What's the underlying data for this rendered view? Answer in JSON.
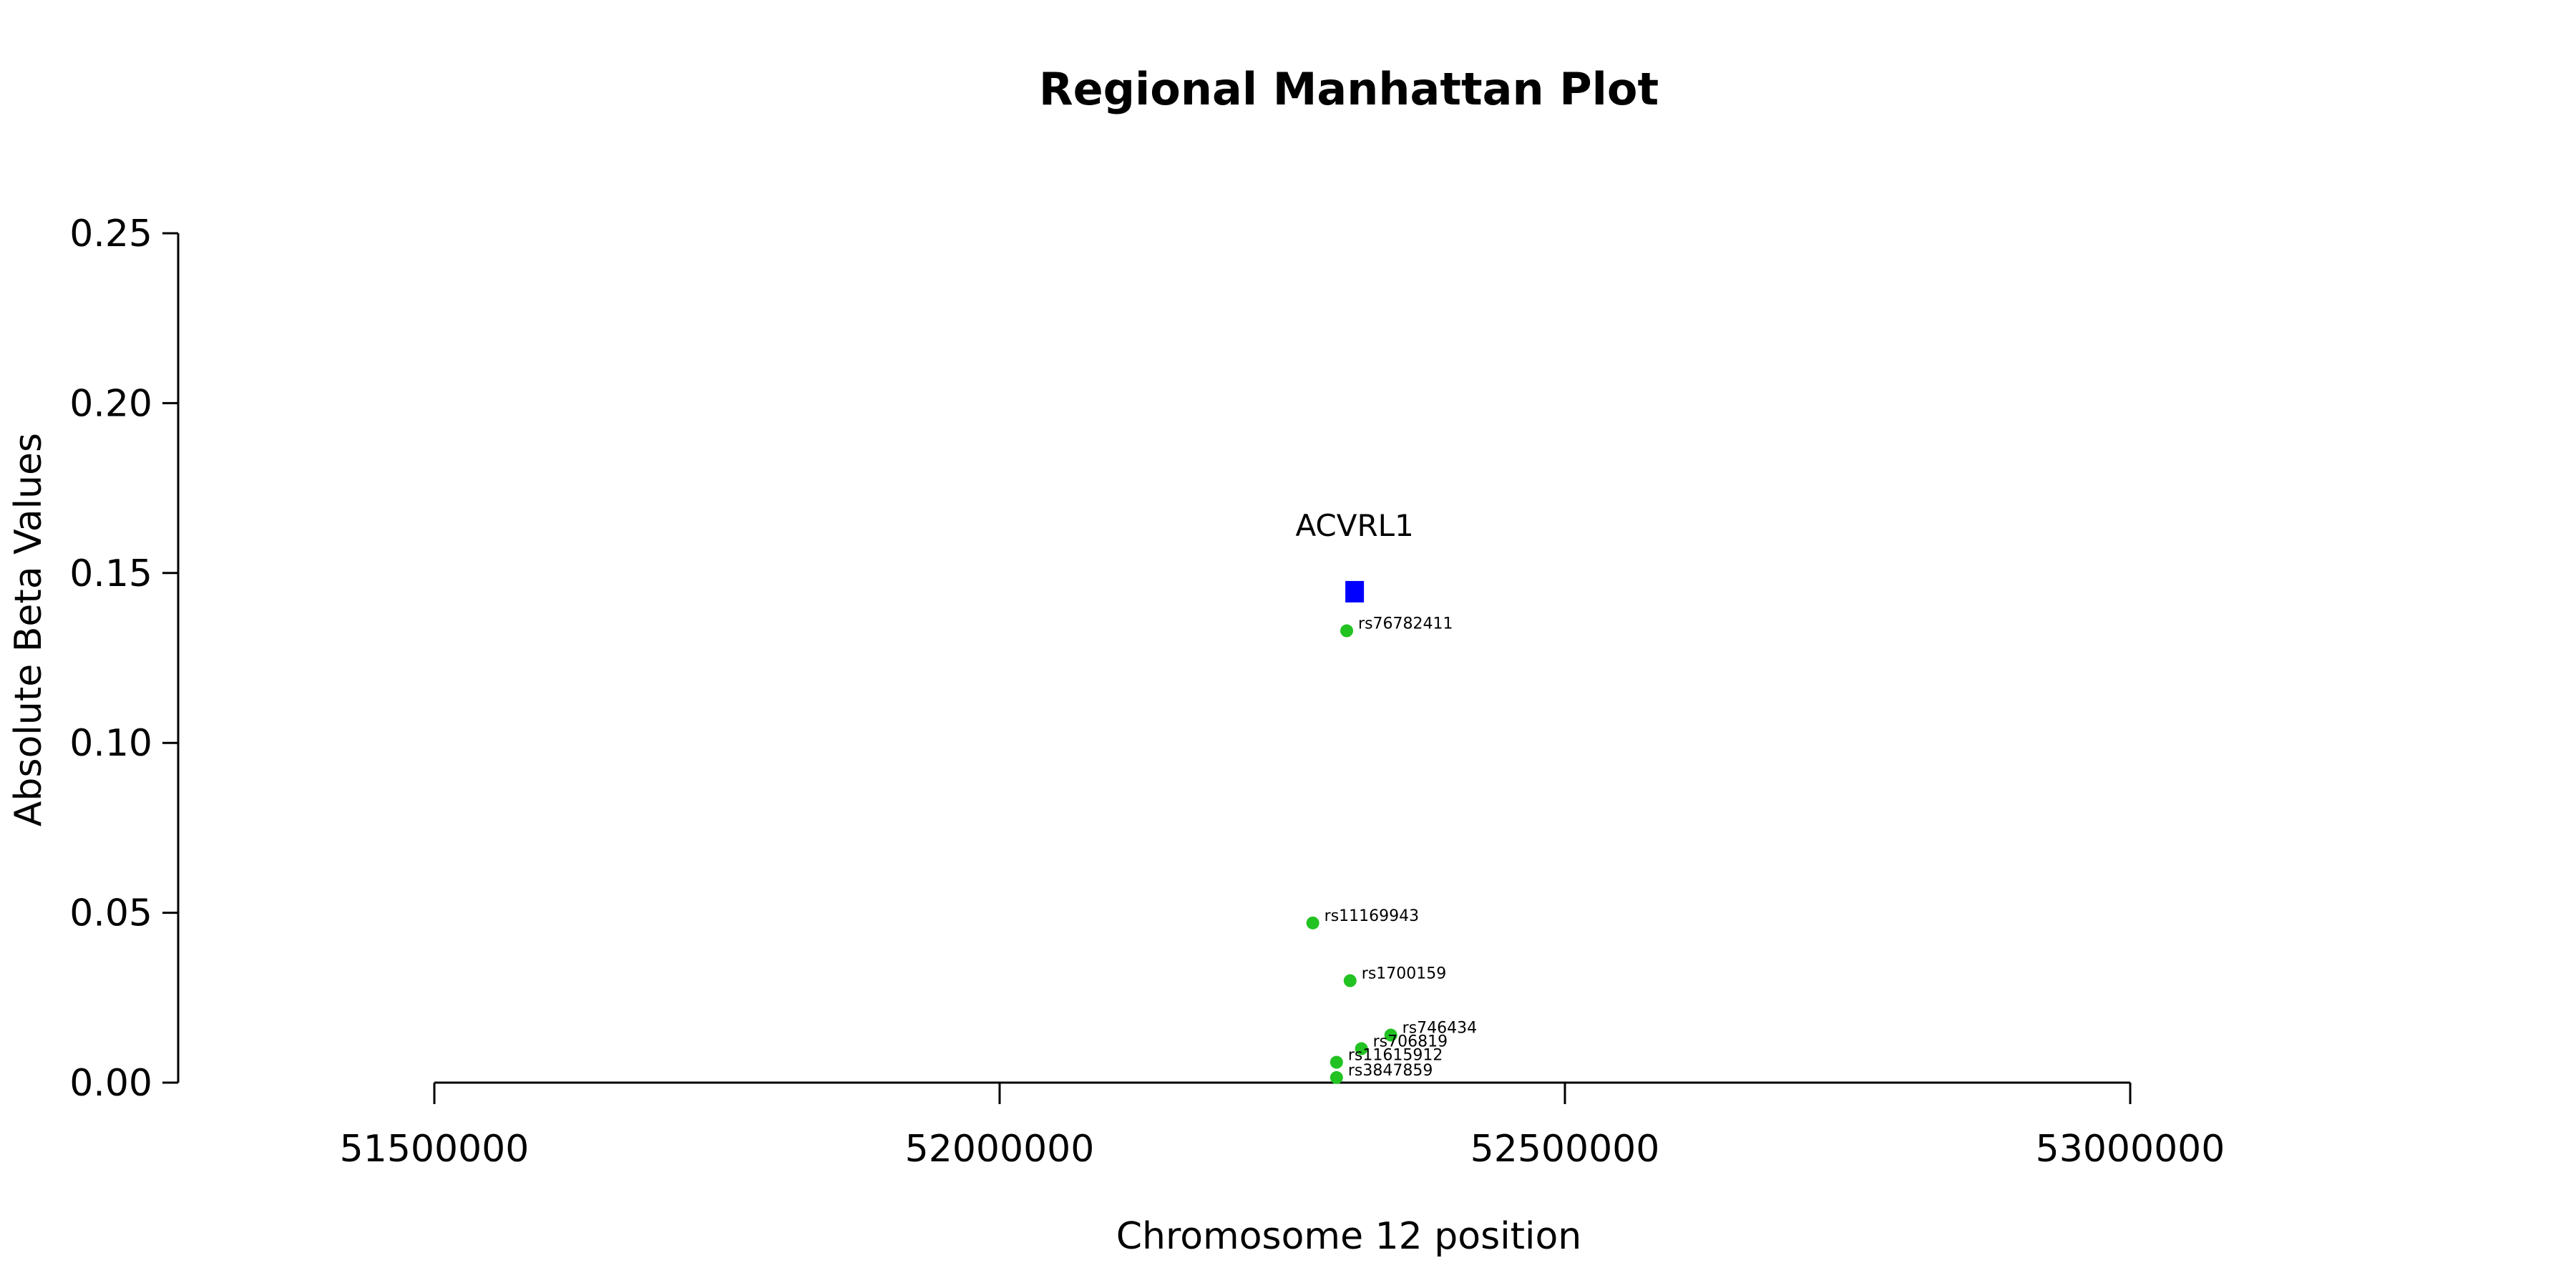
{
  "chart_data": {
    "type": "scatter",
    "title": "Regional Manhattan Plot",
    "xlabel": "Chromosome 12 position",
    "ylabel": "Absolute Beta Values",
    "xlim": [
      51500000,
      53000000
    ],
    "ylim": [
      0,
      0.25
    ],
    "xticks": [
      51500000,
      52000000,
      52500000,
      53000000
    ],
    "yticks": [
      0.0,
      0.05,
      0.1,
      0.15,
      0.2,
      0.25
    ],
    "xtick_labels": [
      "51500000",
      "52000000",
      "52500000",
      "53000000"
    ],
    "ytick_labels": [
      "0.00",
      "0.05",
      "0.10",
      "0.15",
      "0.20",
      "0.25"
    ],
    "grid": false,
    "gene": {
      "name": "ACVRL1",
      "x": 52314000,
      "y": 0.1445,
      "color": "#0000ff",
      "marker": "square"
    },
    "snp_color": "#22c222",
    "snps": [
      {
        "id": "rs76782411",
        "x": 52307000,
        "y": 0.133
      },
      {
        "id": "rs11169943",
        "x": 52277000,
        "y": 0.047
      },
      {
        "id": "rs1700159",
        "x": 52310000,
        "y": 0.03
      },
      {
        "id": "rs746434",
        "x": 52346000,
        "y": 0.014
      },
      {
        "id": "rs706819",
        "x": 52320000,
        "y": 0.01
      },
      {
        "id": "rs11615912",
        "x": 52298000,
        "y": 0.006
      },
      {
        "id": "rs3847859",
        "x": 52298000,
        "y": 0.0015
      }
    ]
  }
}
